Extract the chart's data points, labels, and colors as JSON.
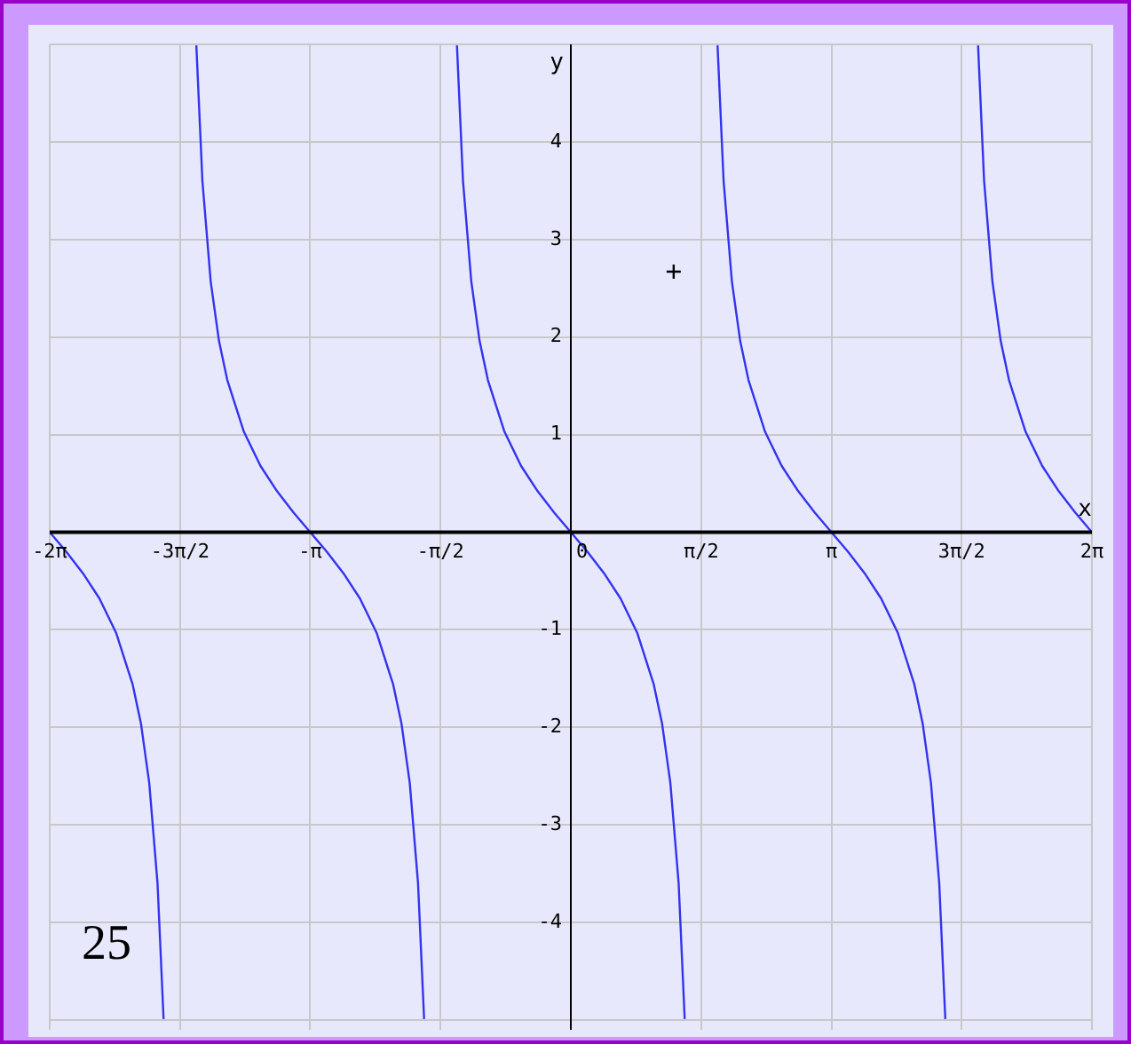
{
  "chart_data": {
    "type": "line",
    "xlabel": "x",
    "ylabel": "y",
    "annotations": [
      "25"
    ],
    "xlim": [
      -6.283,
      6.283
    ],
    "ylim": [
      -5.1,
      5
    ],
    "xticks": [
      {
        "value": -6.283,
        "label": "-2π"
      },
      {
        "value": -4.712,
        "label": "-3π/2"
      },
      {
        "value": -3.142,
        "label": "-π"
      },
      {
        "value": -1.571,
        "label": "-π/2"
      },
      {
        "value": 0,
        "label": "0"
      },
      {
        "value": 1.571,
        "label": "π/2"
      },
      {
        "value": 3.142,
        "label": "π"
      },
      {
        "value": 4.712,
        "label": "3π/2"
      },
      {
        "value": 6.283,
        "label": "2π"
      }
    ],
    "yticks": [
      {
        "value": -5,
        "label": null
      },
      -4,
      -3,
      -2,
      -1,
      {
        "value": 0,
        "label": null
      },
      1,
      2,
      3,
      4,
      {
        "value": 5,
        "label": null
      }
    ],
    "grid": true,
    "legend": false,
    "marker": "none",
    "line_style": "solid",
    "series": [
      {
        "type": "line",
        "color": "#3333ee",
        "x": [
          -6.283,
          -6.083,
          -5.883,
          -5.683,
          -5.483,
          -5.283,
          -5.183,
          -5.083,
          -4.983,
          -4.91,
          -4.712,
          -4.515,
          -4.442,
          -4.342,
          -4.242,
          -4.142,
          -3.942,
          -3.742,
          -3.542,
          -3.342,
          -3.142,
          -2.942,
          -2.742,
          -2.542,
          -2.342,
          -2.142,
          -2.042,
          -1.942,
          -1.842,
          -1.769,
          -1.571,
          -1.373,
          -1.3,
          -1.2,
          -1.1,
          -1.0,
          -0.8,
          -0.6,
          -0.4,
          -0.2,
          0,
          0.2,
          0.4,
          0.6,
          0.8,
          1.0,
          1.1,
          1.2,
          1.3,
          1.373,
          1.571,
          1.769,
          1.842,
          1.942,
          2.042,
          2.142,
          2.342,
          2.542,
          2.742,
          2.942,
          3.142,
          3.342,
          3.542,
          3.742,
          3.942,
          4.142,
          4.242,
          4.342,
          4.442,
          4.515,
          4.712,
          4.91,
          4.983,
          5.083,
          5.183,
          5.283,
          5.483,
          5.683,
          5.883,
          6.083,
          6.283
        ],
        "values": [
          0,
          -0.2,
          -0.42,
          -0.68,
          -1.03,
          -1.56,
          -1.96,
          -2.57,
          -3.6,
          -4.99,
          null,
          4.99,
          3.6,
          2.57,
          1.96,
          1.56,
          1.03,
          0.68,
          0.42,
          0.2,
          0,
          -0.2,
          -0.42,
          -0.68,
          -1.03,
          -1.56,
          -1.96,
          -2.57,
          -3.6,
          -4.99,
          null,
          4.99,
          3.6,
          2.57,
          1.96,
          1.56,
          1.03,
          0.68,
          0.42,
          0.2,
          0,
          -0.2,
          -0.42,
          -0.68,
          -1.03,
          -1.56,
          -1.96,
          -2.57,
          -3.6,
          -4.99,
          null,
          4.99,
          3.6,
          2.57,
          1.96,
          1.56,
          1.03,
          0.68,
          0.42,
          0.2,
          0,
          -0.2,
          -0.42,
          -0.68,
          -1.03,
          -1.56,
          -1.96,
          -2.57,
          -3.6,
          -4.99,
          null,
          4.99,
          3.6,
          2.57,
          1.96,
          1.56,
          1.03,
          0.68,
          0.42,
          0.2,
          0
        ]
      },
      {
        "type": "scatter",
        "color": "#000000",
        "marker": "cross",
        "x": [
          1.24
        ],
        "values": [
          2.67
        ]
      }
    ]
  }
}
